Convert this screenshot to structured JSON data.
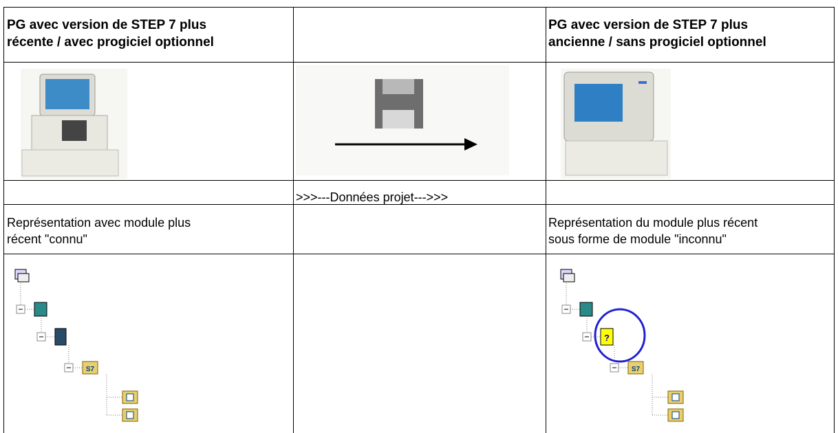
{
  "table": {
    "header": {
      "left": [
        "PG avec version de STEP 7 plus",
        "récente / avec progiciel optionnel"
      ],
      "right": [
        "PG avec version de STEP 7 plus",
        "ancienne / sans progiciel optionnel"
      ]
    },
    "transfer_label": ">>>---Données projet--->>>",
    "captions": {
      "left": [
        "Représentation avec module plus",
        "récent \"connu\""
      ],
      "right": [
        "Représentation du module plus récent",
        "sous forme de module \"inconnu\""
      ]
    },
    "icons": {
      "folder_label": "S7",
      "unknown_module": "?"
    }
  }
}
